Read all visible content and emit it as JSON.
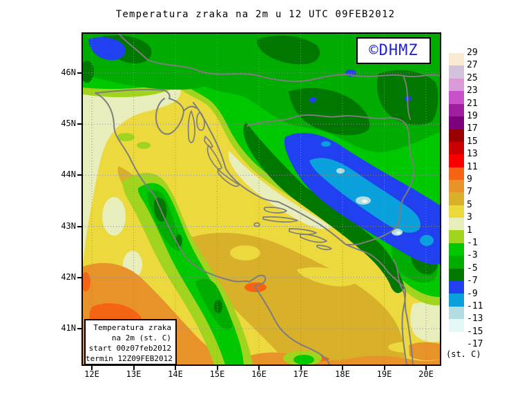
{
  "title": "Temperatura zraka na 2m u 12 UTC 09FEB2012",
  "watermark": {
    "text": "©DHMZ",
    "color": "#2323cd"
  },
  "axes": {
    "x_ticks": [
      "12E",
      "13E",
      "14E",
      "15E",
      "16E",
      "17E",
      "18E",
      "19E",
      "20E"
    ],
    "y_ticks": [
      "46N",
      "45N",
      "44N",
      "43N",
      "42N",
      "41N"
    ]
  },
  "colorbar": {
    "unit_label": "(st. C)",
    "tick_labels": [
      "29",
      "27",
      "25",
      "23",
      "21",
      "19",
      "17",
      "15",
      "13",
      "11",
      "9",
      "7",
      "5",
      "3",
      "1",
      "-1",
      "-3",
      "-5",
      "-7",
      "-9",
      "-11",
      "-13",
      "-15",
      "-17"
    ],
    "swatch_colors": [
      "#fbead2",
      "#d2c2da",
      "#da9ada",
      "#c850c8",
      "#a01ea0",
      "#7d007d",
      "#990000",
      "#cd0000",
      "#f80000",
      "#f46414",
      "#e8922a",
      "#d8b02a",
      "#ecd93e",
      "#e7eebb",
      "#a0d41e",
      "#00c800",
      "#00ac00",
      "#007800",
      "#2141f0",
      "#0aa0dc",
      "#b4dce1",
      "#e6f7f7",
      "#ffffff"
    ]
  },
  "info_box": {
    "lines": [
      "Temperatura zraka",
      "na 2m (st. C)",
      "start 00z07feb2012",
      "termin 12Z09FEB2012"
    ]
  },
  "map": {
    "frame_color": "#000000",
    "grid_color": "#8f8f8f",
    "coastline_color": "#7d7d7d"
  }
}
